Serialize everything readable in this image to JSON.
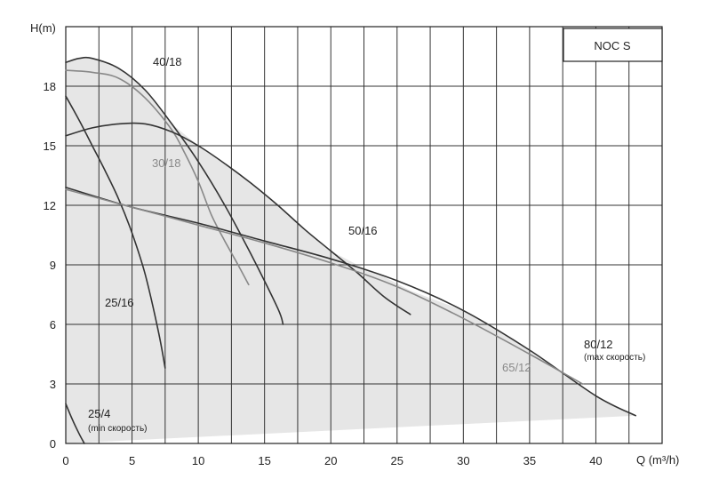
{
  "chart_data": {
    "type": "line",
    "title": "NOC S",
    "xlabel": "Q (m³/h)",
    "ylabel": "H(m)",
    "xlim": [
      0,
      45
    ],
    "ylim": [
      0,
      21
    ],
    "x_ticks": [
      "0",
      "5",
      "10",
      "15",
      "20",
      "25",
      "30",
      "35",
      "40"
    ],
    "y_ticks": [
      "0",
      "3",
      "6",
      "9",
      "12",
      "15",
      "18"
    ],
    "grid": true,
    "shaded_region": "operating-range",
    "series": [
      {
        "name": "40/18",
        "color": "#333333",
        "label": "40/18",
        "sublabel": "",
        "x": [
          0,
          1,
          2,
          4,
          6,
          8,
          10,
          12,
          14,
          16,
          16.4
        ],
        "y": [
          19.2,
          19.4,
          19.4,
          18.9,
          17.8,
          16.1,
          14.2,
          12.0,
          9.5,
          6.8,
          6.0
        ]
      },
      {
        "name": "30/18",
        "color": "#888888",
        "label": "30/18",
        "sublabel": "",
        "x": [
          0,
          2,
          4,
          6,
          8,
          9,
          10,
          11,
          12,
          13,
          13.8
        ],
        "y": [
          18.8,
          18.7,
          18.4,
          17.4,
          15.8,
          14.6,
          13.2,
          11.5,
          10.2,
          9.0,
          8.0
        ]
      },
      {
        "name": "25/16",
        "color": "#333333",
        "label": "25/16",
        "sublabel": "",
        "x": [
          0,
          1,
          2,
          3,
          4,
          5,
          6,
          7,
          7.5
        ],
        "y": [
          17.5,
          16.3,
          15.0,
          13.7,
          12.3,
          10.6,
          8.5,
          5.6,
          3.8
        ]
      },
      {
        "name": "50/16",
        "color": "#333333",
        "label": "50/16",
        "sublabel": "",
        "x": [
          0,
          2,
          4,
          6,
          8,
          10,
          12,
          14,
          16,
          18,
          20,
          22,
          24,
          26
        ],
        "y": [
          15.5,
          15.9,
          16.1,
          16.1,
          15.7,
          15.0,
          14.1,
          13.1,
          12.0,
          10.8,
          9.7,
          8.6,
          7.4,
          6.5
        ]
      },
      {
        "name": "80/12",
        "color": "#333333",
        "label": "80/12",
        "sublabel": "(max скорость)",
        "x": [
          0,
          5,
          10,
          15,
          20,
          25,
          30,
          35,
          40,
          43
        ],
        "y": [
          12.9,
          11.9,
          11.1,
          10.2,
          9.3,
          8.2,
          6.7,
          4.7,
          2.4,
          1.4
        ]
      },
      {
        "name": "65/12",
        "color": "#888888",
        "label": "65/12",
        "sublabel": "",
        "x": [
          0,
          5,
          10,
          15,
          20,
          25,
          30,
          35,
          39
        ],
        "y": [
          12.8,
          11.9,
          11.0,
          10.1,
          9.1,
          7.9,
          6.3,
          4.5,
          3.0
        ]
      },
      {
        "name": "25/4",
        "color": "#333333",
        "label": "25/4",
        "sublabel": "(min скорость)",
        "x": [
          0,
          0.5,
          1,
          1.4
        ],
        "y": [
          2.0,
          1.2,
          0.5,
          0.0
        ]
      }
    ],
    "shade_upper": {
      "x": [
        0,
        1,
        2,
        4,
        6,
        8,
        10,
        12,
        14,
        16,
        18,
        20,
        22,
        24,
        26,
        28,
        30,
        35,
        40,
        43
      ],
      "y": [
        19.2,
        19.4,
        19.4,
        18.9,
        17.8,
        16.1,
        15.0,
        14.1,
        13.1,
        12.0,
        10.8,
        9.7,
        9.0,
        8.4,
        7.7,
        7.2,
        6.7,
        4.7,
        2.4,
        1.4
      ]
    },
    "shade_lower": {
      "x": [
        0,
        43
      ],
      "y": [
        0.0,
        1.4
      ]
    }
  }
}
